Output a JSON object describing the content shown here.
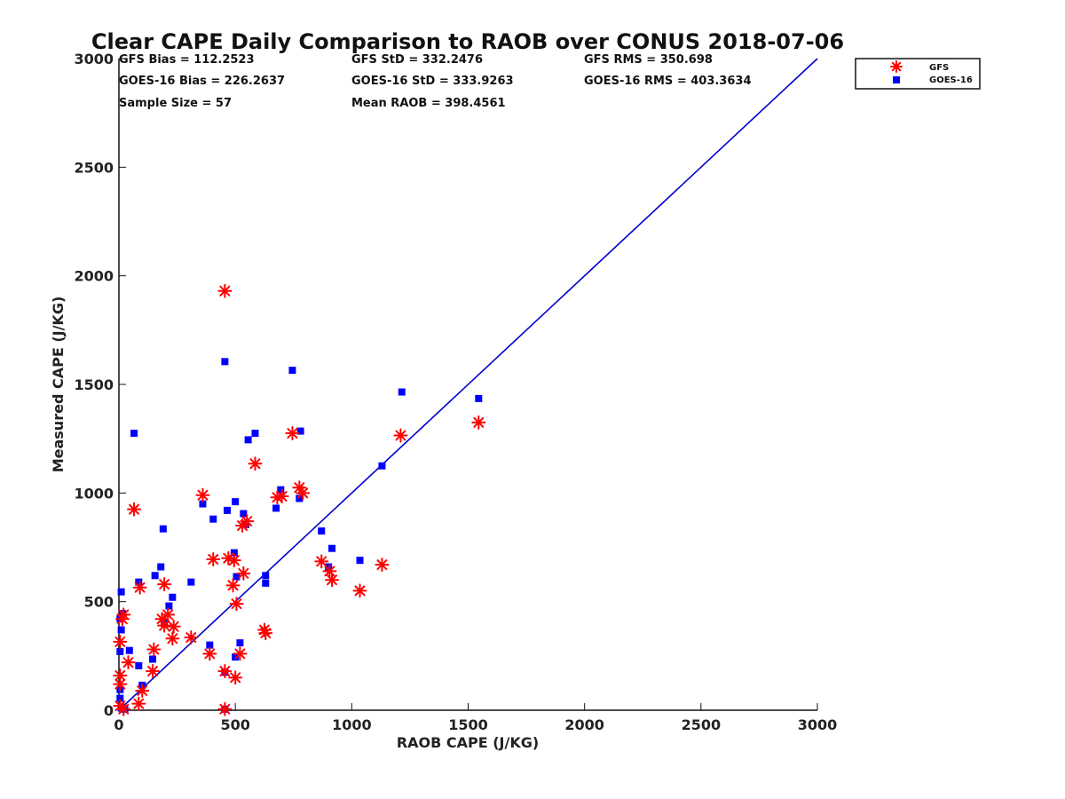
{
  "chart_data": {
    "type": "scatter",
    "title": "Clear CAPE Daily Comparison to RAOB over CONUS 2018-07-06",
    "xlabel": "RAOB CAPE (J/KG)",
    "ylabel": "Measured CAPE (J/KG)",
    "xlim": [
      0,
      3000
    ],
    "ylim": [
      0,
      3000
    ],
    "xticks": [
      "0",
      "500",
      "1000",
      "1500",
      "2000",
      "2500",
      "3000"
    ],
    "yticks": [
      "0",
      "500",
      "1000",
      "1500",
      "2000",
      "2500",
      "3000"
    ],
    "grid": false,
    "legend_position": "outside top-right",
    "stats": [
      "GFS Bias = 112.2523",
      "GFS StD = 332.2476",
      "GFS RMS = 350.698",
      "GOES-16 Bias = 226.2637",
      "GOES-16 StD = 333.9263",
      "GOES-16 RMS = 403.3634",
      "Sample Size = 57",
      "Mean RAOB = 398.4561"
    ],
    "reference_line": {
      "x": [
        0,
        3000
      ],
      "y": [
        0,
        3000
      ],
      "color": "#0000cc"
    },
    "series": [
      {
        "name": "GFS",
        "marker": "asterisk",
        "color": "#ff0000",
        "points": [
          [
            455,
            1930
          ],
          [
            65,
            925
          ],
          [
            360,
            990
          ],
          [
            585,
            1135
          ],
          [
            745,
            1275
          ],
          [
            1210,
            1265
          ],
          [
            1545,
            1325
          ],
          [
            775,
            1025
          ],
          [
            680,
            980
          ],
          [
            700,
            985
          ],
          [
            790,
            1000
          ],
          [
            550,
            870
          ],
          [
            530,
            850
          ],
          [
            405,
            695
          ],
          [
            470,
            700
          ],
          [
            495,
            690
          ],
          [
            535,
            630
          ],
          [
            490,
            575
          ],
          [
            505,
            490
          ],
          [
            870,
            685
          ],
          [
            905,
            640
          ],
          [
            915,
            600
          ],
          [
            1130,
            670
          ],
          [
            1035,
            550
          ],
          [
            90,
            565
          ],
          [
            195,
            580
          ],
          [
            20,
            440
          ],
          [
            15,
            420
          ],
          [
            5,
            315
          ],
          [
            185,
            420
          ],
          [
            210,
            440
          ],
          [
            195,
            390
          ],
          [
            235,
            385
          ],
          [
            230,
            330
          ],
          [
            310,
            335
          ],
          [
            150,
            280
          ],
          [
            390,
            260
          ],
          [
            520,
            260
          ],
          [
            625,
            370
          ],
          [
            630,
            355
          ],
          [
            40,
            220
          ],
          [
            145,
            180
          ],
          [
            455,
            180
          ],
          [
            500,
            150
          ],
          [
            5,
            160
          ],
          [
            5,
            120
          ],
          [
            100,
            90
          ],
          [
            85,
            30
          ],
          [
            5,
            20
          ],
          [
            20,
            5
          ],
          [
            455,
            5
          ]
        ]
      },
      {
        "name": "GOES-16",
        "marker": "square",
        "color": "#0000ff",
        "points": [
          [
            455,
            1605
          ],
          [
            745,
            1565
          ],
          [
            1215,
            1465
          ],
          [
            1545,
            1435
          ],
          [
            65,
            1275
          ],
          [
            585,
            1275
          ],
          [
            780,
            1285
          ],
          [
            555,
            1245
          ],
          [
            1130,
            1125
          ],
          [
            695,
            1015
          ],
          [
            775,
            975
          ],
          [
            500,
            960
          ],
          [
            360,
            950
          ],
          [
            465,
            920
          ],
          [
            675,
            930
          ],
          [
            535,
            905
          ],
          [
            405,
            880
          ],
          [
            545,
            855
          ],
          [
            190,
            835
          ],
          [
            870,
            825
          ],
          [
            915,
            745
          ],
          [
            495,
            725
          ],
          [
            1035,
            690
          ],
          [
            180,
            660
          ],
          [
            900,
            660
          ],
          [
            155,
            620
          ],
          [
            630,
            620
          ],
          [
            505,
            615
          ],
          [
            85,
            590
          ],
          [
            310,
            590
          ],
          [
            630,
            585
          ],
          [
            10,
            545
          ],
          [
            230,
            520
          ],
          [
            215,
            480
          ],
          [
            15,
            445
          ],
          [
            5,
            420
          ],
          [
            195,
            400
          ],
          [
            10,
            370
          ],
          [
            520,
            310
          ],
          [
            390,
            300
          ],
          [
            45,
            275
          ],
          [
            5,
            270
          ],
          [
            500,
            245
          ],
          [
            145,
            235
          ],
          [
            85,
            205
          ],
          [
            455,
            175
          ],
          [
            5,
            95
          ],
          [
            100,
            115
          ],
          [
            5,
            55
          ],
          [
            10,
            10
          ],
          [
            25,
            5
          ],
          [
            455,
            5
          ]
        ]
      }
    ]
  }
}
